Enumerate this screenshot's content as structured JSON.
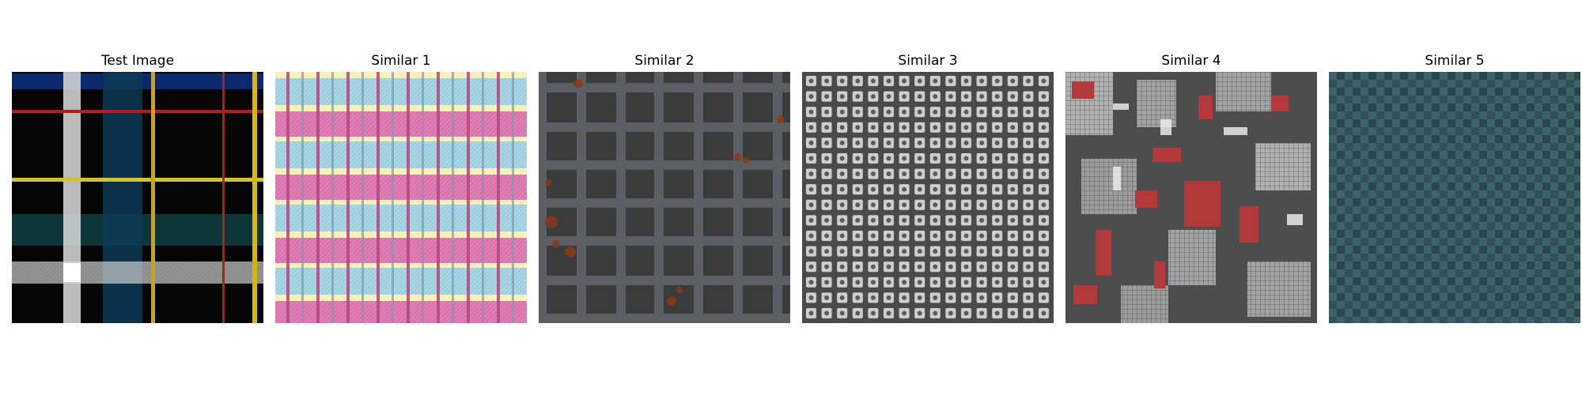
{
  "figure": {
    "panels": [
      {
        "title": "Test Image",
        "texture": "tartan-plaid"
      },
      {
        "title": "Similar 1",
        "texture": "pastel-gingham"
      },
      {
        "title": "Similar 2",
        "texture": "rusty-metal-grid"
      },
      {
        "title": "Similar 3",
        "texture": "dotted-grid-tiles"
      },
      {
        "title": "Similar 4",
        "texture": "red-grey-circuit-collage"
      },
      {
        "title": "Similar 5",
        "texture": "teal-checker-tiles"
      }
    ]
  }
}
